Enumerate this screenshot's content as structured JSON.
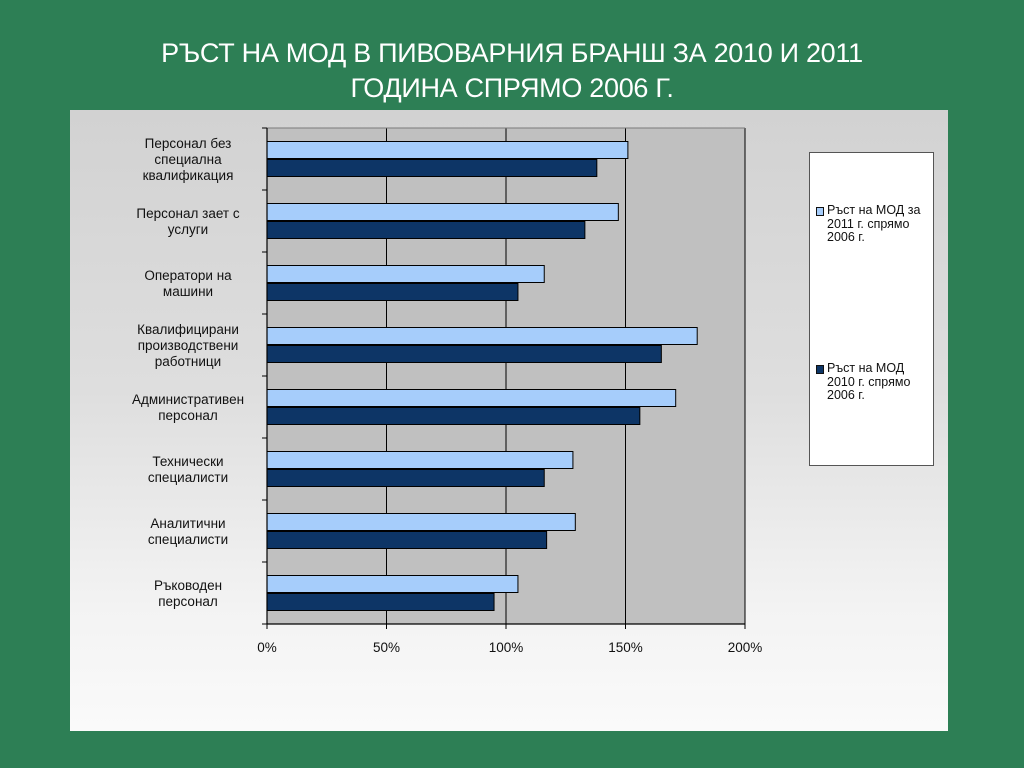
{
  "slide": {
    "title_line1": "РЪСТ НА МОД В ПИВОВАРНИЯ БРАНШ ЗА 2010 И 2011",
    "title_line2": "ГОДИНА  СПРЯМО 2006 Г."
  },
  "colors": {
    "background": "#2d7f55",
    "series_2011": "#a6cdfb",
    "series_2010": "#0d3566",
    "plot_area": "#c0c0c0"
  },
  "chart_data": {
    "type": "bar",
    "orientation": "horizontal",
    "categories": [
      [
        "Персонал без",
        "специална",
        "квалификация"
      ],
      [
        "Персонал зает с",
        "услуги"
      ],
      [
        "Оператори на",
        "машини"
      ],
      [
        "Квалифицирани",
        "производствени",
        "работници"
      ],
      [
        "Административен",
        "персонал"
      ],
      [
        "Технически",
        "специалисти"
      ],
      [
        "Аналитични",
        "специалисти"
      ],
      [
        "Ръководен",
        "персонал"
      ]
    ],
    "series": [
      {
        "name": "Ръст на МОД за 2011 г. спрямо 2006 г.",
        "color": "#a6cdfb",
        "values": [
          151,
          147,
          116,
          180,
          171,
          128,
          129,
          105
        ]
      },
      {
        "name": "Ръст на МОД 2010 г. спрямо 2006 г.",
        "color": "#0d3566",
        "values": [
          138,
          133,
          105,
          165,
          156,
          116,
          117,
          95
        ]
      }
    ],
    "x_ticks": [
      "0%",
      "50%",
      "100%",
      "150%",
      "200%"
    ],
    "xlim": [
      0,
      200
    ],
    "grid": true,
    "legend_position": "right"
  }
}
